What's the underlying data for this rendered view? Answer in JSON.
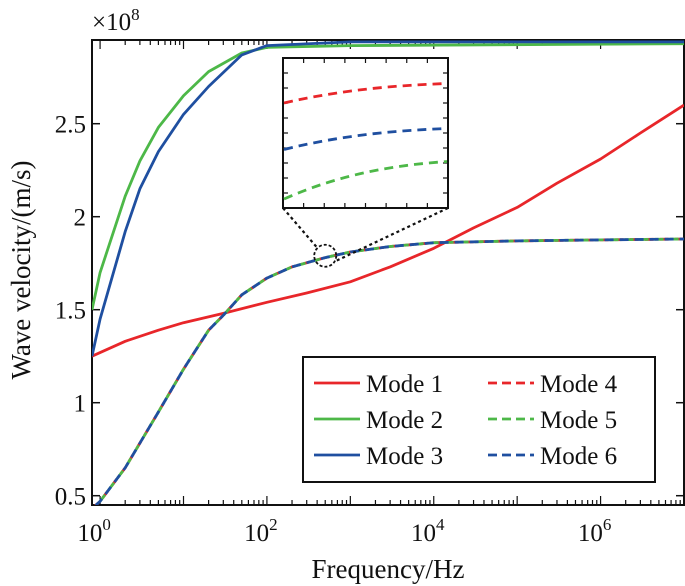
{
  "chart_data": {
    "type": "line",
    "xlabel": "Frequency/Hz",
    "ylabel": "Wave velocity/(m/s)",
    "y_multiplier_label": {
      "base": "×10",
      "exponent": "8"
    },
    "x_scale": "log",
    "xlim": [
      0.8,
      10000000
    ],
    "ylim": [
      0.45,
      2.95
    ],
    "x_ticks": [
      {
        "value": 1,
        "base": "10",
        "exponent": "0"
      },
      {
        "value": 100,
        "base": "10",
        "exponent": "2"
      },
      {
        "value": 10000,
        "base": "10",
        "exponent": "4"
      },
      {
        "value": 1000000,
        "base": "10",
        "exponent": "6"
      }
    ],
    "y_ticks": [
      {
        "value": 0.5,
        "label": "0.5"
      },
      {
        "value": 1,
        "label": "1"
      },
      {
        "value": 1.5,
        "label": "1.5"
      },
      {
        "value": 2,
        "label": "2"
      },
      {
        "value": 2.5,
        "label": "2.5"
      }
    ],
    "legend_position": "bottom-right",
    "legend_columns": 2,
    "series": [
      {
        "name": "Mode 1",
        "color": "#e8262a",
        "style": "solid",
        "x": [
          0.8,
          2,
          5,
          10,
          30,
          100,
          300,
          1000,
          3000,
          10000,
          30000,
          100000,
          300000,
          1000000,
          3000000,
          10000000
        ],
        "y": [
          1.25,
          1.33,
          1.39,
          1.43,
          1.48,
          1.54,
          1.59,
          1.65,
          1.73,
          1.83,
          1.94,
          2.05,
          2.18,
          2.31,
          2.45,
          2.6
        ]
      },
      {
        "name": "Mode 2",
        "color": "#4db848",
        "style": "solid",
        "x": [
          0.8,
          1,
          2,
          3,
          5,
          10,
          20,
          50,
          100,
          1000,
          10000000
        ],
        "y": [
          1.5,
          1.7,
          2.11,
          2.3,
          2.48,
          2.65,
          2.78,
          2.88,
          2.91,
          2.92,
          2.93
        ]
      },
      {
        "name": "Mode 3",
        "color": "#1f4fa0",
        "style": "solid",
        "x": [
          0.8,
          1,
          2,
          3,
          5,
          10,
          20,
          50,
          100,
          1000,
          10000000
        ],
        "y": [
          1.25,
          1.45,
          1.92,
          2.15,
          2.35,
          2.55,
          2.7,
          2.87,
          2.92,
          2.94,
          2.94
        ]
      },
      {
        "name": "Mode 4",
        "color": "#e8262a",
        "style": "dashed",
        "x": [
          0.8,
          1,
          2,
          5,
          10,
          20,
          30,
          50,
          100,
          200,
          500,
          1000,
          3000,
          10000,
          100000,
          1000000,
          10000000
        ],
        "y": [
          0.43,
          0.47,
          0.65,
          0.95,
          1.18,
          1.39,
          1.47,
          1.58,
          1.67,
          1.73,
          1.78,
          1.81,
          1.84,
          1.86,
          1.87,
          1.875,
          1.88
        ]
      },
      {
        "name": "Mode 5",
        "color": "#4db848",
        "style": "dashed",
        "x": [
          0.8,
          1,
          2,
          5,
          10,
          20,
          30,
          50,
          100,
          200,
          500,
          1000,
          3000,
          10000,
          100000,
          1000000,
          10000000
        ],
        "y": [
          0.43,
          0.47,
          0.65,
          0.95,
          1.18,
          1.39,
          1.47,
          1.58,
          1.67,
          1.73,
          1.78,
          1.81,
          1.84,
          1.86,
          1.87,
          1.875,
          1.88
        ]
      },
      {
        "name": "Mode 6",
        "color": "#1f4fa0",
        "style": "dashed",
        "x": [
          0.8,
          1,
          2,
          5,
          10,
          20,
          30,
          50,
          100,
          200,
          500,
          1000,
          3000,
          10000,
          100000,
          1000000,
          10000000
        ],
        "y": [
          0.43,
          0.47,
          0.65,
          0.95,
          1.18,
          1.39,
          1.47,
          1.58,
          1.67,
          1.73,
          1.78,
          1.81,
          1.84,
          1.86,
          1.87,
          1.875,
          1.88
        ]
      }
    ],
    "inset": {
      "zoom_center": {
        "x": 500,
        "y": 1.79
      },
      "curves": [
        {
          "series": "Mode 4",
          "y_frac": [
            0.7,
            0.83
          ]
        },
        {
          "series": "Mode 6",
          "y_frac": [
            0.39,
            0.53
          ]
        },
        {
          "series": "Mode 5",
          "y_frac": [
            0.06,
            0.31
          ]
        }
      ]
    }
  }
}
